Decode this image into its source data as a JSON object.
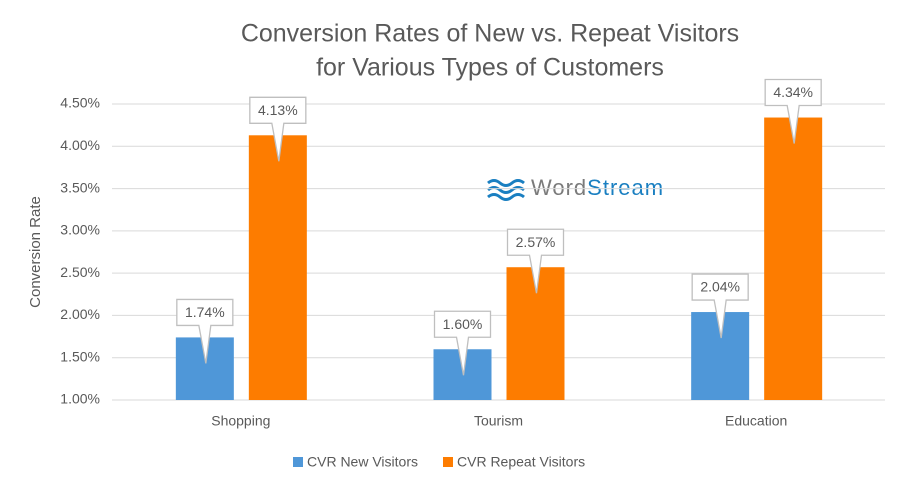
{
  "chart_data": {
    "type": "bar",
    "title": [
      "Conversion Rates of New vs. Repeat Visitors",
      "for Various Types of Customers"
    ],
    "y_label": "Conversion Rate",
    "watermark": {
      "first": "Word",
      "second": "Stream"
    },
    "categories": [
      "Shopping",
      "Tourism",
      "Education"
    ],
    "series": [
      {
        "name": "CVR New Visitors",
        "color": "#4f97d8",
        "values": [
          1.74,
          1.6,
          2.04
        ],
        "value_labels": [
          "1.74%",
          "1.60%",
          "2.04%"
        ]
      },
      {
        "name": "CVR Repeat Visitors",
        "color": "#fd7c00",
        "values": [
          4.13,
          2.57,
          4.34
        ],
        "value_labels": [
          "4.13%",
          "2.57%",
          "4.34%"
        ]
      }
    ],
    "ylim": [
      1,
      4.5
    ],
    "yticks": [
      {
        "value": 1,
        "label": "1.00%"
      },
      {
        "value": 1.5,
        "label": "1.50%"
      },
      {
        "value": 2,
        "label": "2.00%"
      },
      {
        "value": 2.5,
        "label": "2.50%"
      },
      {
        "value": 3,
        "label": "3.00%"
      },
      {
        "value": 3.5,
        "label": "3.50%"
      },
      {
        "value": 4,
        "label": "4.00%"
      },
      {
        "value": 4.5,
        "label": "4.50%"
      }
    ],
    "grid": true,
    "legend": "bottom"
  }
}
